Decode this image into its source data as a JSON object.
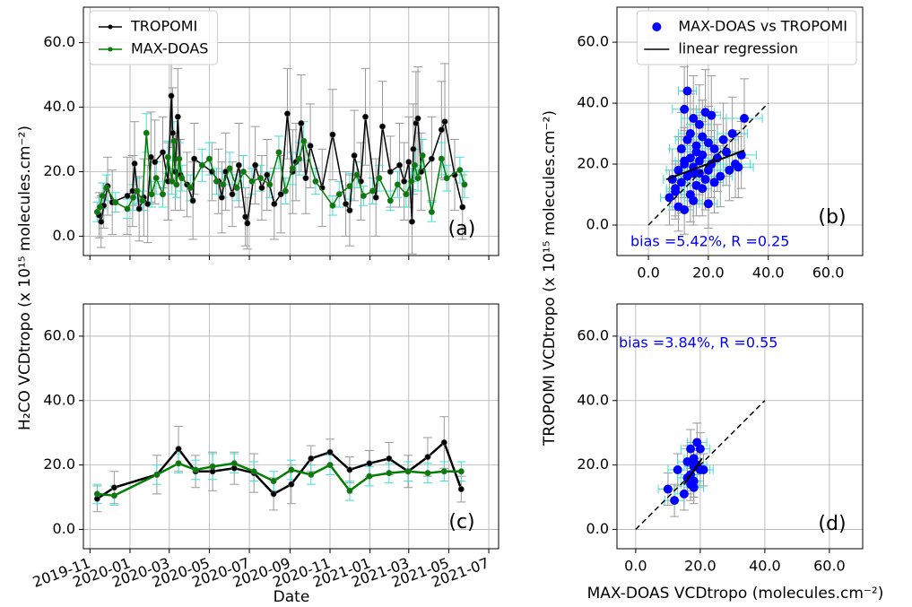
{
  "chart_data": [
    {
      "type": "line",
      "panel_label": "(a)",
      "ylabel": "H₂CO VCDtropo (x 10¹⁵ molecules.cm⁻²)",
      "xlim": [
        "2019-10-22",
        "2021-07-16"
      ],
      "ylim": [
        -6,
        71
      ],
      "xticks": [
        "2019-11",
        "2020-01",
        "2020-03",
        "2020-05",
        "2020-07",
        "2020-09",
        "2020-11",
        "2021-01",
        "2021-03",
        "2021-05",
        "2021-07"
      ],
      "xtick_labels": false,
      "yticks": [
        {
          "value": 0,
          "label": "0.0"
        },
        {
          "value": 20,
          "label": "20.0"
        },
        {
          "value": 40,
          "label": "40.0"
        },
        {
          "value": 60,
          "label": "60.0"
        }
      ],
      "grid": true,
      "legend": "upper left",
      "series": [
        {
          "name": "TROPOMI",
          "color": "#000000",
          "error_color": "#999999",
          "x": [
            "2019-11-15",
            "2019-11-18",
            "2019-11-22",
            "2019-11-28",
            "2019-12-05",
            "2019-12-28",
            "2020-01-05",
            "2020-01-08",
            "2020-01-15",
            "2020-01-22",
            "2020-01-28",
            "2020-02-02",
            "2020-02-08",
            "2020-02-20",
            "2020-02-28",
            "2020-03-04",
            "2020-03-06",
            "2020-03-10",
            "2020-03-14",
            "2020-03-18",
            "2020-03-28",
            "2020-04-06",
            "2020-04-08",
            "2020-05-05",
            "2020-05-15",
            "2020-05-20",
            "2020-05-26",
            "2020-06-05",
            "2020-06-15",
            "2020-06-25",
            "2020-06-28",
            "2020-07-10",
            "2020-07-20",
            "2020-07-28",
            "2020-08-08",
            "2020-08-18",
            "2020-08-28",
            "2020-09-05",
            "2020-09-10",
            "2020-09-18",
            "2020-09-25",
            "2020-10-02",
            "2020-10-20",
            "2020-11-05",
            "2020-11-25",
            "2020-12-01",
            "2020-12-08",
            "2020-12-18",
            "2020-12-25",
            "2021-01-10",
            "2021-01-20",
            "2021-02-01",
            "2021-02-15",
            "2021-02-22",
            "2021-03-01",
            "2021-03-06",
            "2021-03-08",
            "2021-03-12",
            "2021-03-15",
            "2021-03-20",
            "2021-04-05",
            "2021-04-20",
            "2021-04-25",
            "2021-05-10",
            "2021-05-22"
          ],
          "values": [
            6.5,
            4.5,
            9.5,
            15.5,
            10.5,
            12.5,
            14,
            22.5,
            8.5,
            12,
            10,
            24.5,
            23,
            26,
            17,
            43.5,
            32,
            20,
            37,
            19,
            16,
            11,
            24,
            20,
            17,
            12,
            20,
            13,
            22,
            6,
            4,
            22,
            15,
            19,
            10,
            13,
            38,
            20,
            23,
            35,
            18,
            28,
            15,
            31.5,
            10,
            8,
            25,
            17,
            37,
            12,
            34,
            20,
            22,
            17,
            23,
            4.5,
            27,
            35,
            36.5,
            20,
            24,
            33,
            35.5,
            19,
            9
          ],
          "errors": [
            7,
            8,
            7,
            9,
            10,
            12,
            11,
            13,
            10,
            12,
            12,
            14,
            13,
            11,
            12,
            16,
            14,
            12,
            15,
            11,
            10,
            12,
            11,
            9,
            10,
            11,
            12,
            10,
            13,
            9,
            8,
            12,
            10,
            11,
            11,
            12,
            14,
            13,
            12,
            15,
            11,
            13,
            12,
            14,
            10,
            11,
            14,
            12,
            15,
            12,
            14,
            11,
            13,
            12,
            14,
            10,
            14,
            16,
            16,
            12,
            13,
            15,
            18,
            11,
            10
          ]
        },
        {
          "name": "MAX-DOAS",
          "color": "#008000",
          "error_color": "#40e0d0",
          "x": [
            "2019-11-12",
            "2019-11-16",
            "2019-11-20",
            "2019-11-26",
            "2019-12-10",
            "2019-12-28",
            "2020-01-06",
            "2020-01-12",
            "2020-01-20",
            "2020-01-26",
            "2020-02-03",
            "2020-02-10",
            "2020-02-20",
            "2020-02-28",
            "2020-03-05",
            "2020-03-08",
            "2020-03-12",
            "2020-03-16",
            "2020-03-20",
            "2020-04-02",
            "2020-04-20",
            "2020-05-01",
            "2020-05-12",
            "2020-05-22",
            "2020-06-01",
            "2020-06-12",
            "2020-06-22",
            "2020-07-05",
            "2020-07-18",
            "2020-08-01",
            "2020-08-15",
            "2020-08-25",
            "2020-09-05",
            "2020-09-15",
            "2020-09-22",
            "2020-10-10",
            "2020-11-05",
            "2020-11-15",
            "2020-12-01",
            "2020-12-12",
            "2020-12-22",
            "2021-01-05",
            "2021-01-15",
            "2021-02-01",
            "2021-02-12",
            "2021-02-25",
            "2021-03-05",
            "2021-03-10",
            "2021-03-15",
            "2021-03-22",
            "2021-04-05",
            "2021-04-20",
            "2021-04-28",
            "2021-05-18",
            "2021-05-25"
          ],
          "values": [
            7.5,
            9,
            12.5,
            15,
            10.5,
            8.5,
            12,
            14,
            11,
            32,
            13,
            18,
            13,
            24.5,
            17,
            29.5,
            16,
            24,
            18,
            15,
            22,
            24,
            17,
            16,
            21,
            15,
            20,
            17,
            18,
            16,
            26,
            14,
            21,
            24,
            29.5,
            17,
            9.5,
            13,
            15.5,
            19,
            12.5,
            14,
            18,
            11,
            16,
            13,
            17,
            22,
            18,
            25,
            7.5,
            24,
            18,
            20.5,
            16
          ],
          "errors": [
            3,
            3,
            4,
            4,
            3,
            3,
            4,
            4,
            3,
            6,
            4,
            5,
            4,
            5,
            4,
            6,
            4,
            5,
            4,
            4,
            5,
            5,
            4,
            4,
            5,
            4,
            5,
            4,
            4,
            4,
            5,
            4,
            5,
            5,
            6,
            4,
            3,
            4,
            4,
            4,
            3,
            4,
            4,
            3,
            4,
            4,
            4,
            5,
            4,
            5,
            3,
            5,
            4,
            4,
            4
          ]
        }
      ]
    },
    {
      "type": "scatter",
      "panel_label": "(b)",
      "ylabel": "TROPOMI VCDtropo (x 10¹⁵ molecules.cm⁻²)",
      "annotation": "bias =5.42%, R =0.25",
      "annotation_color": "#0000ff",
      "xlim": [
        -10.5,
        71.5
      ],
      "ylim": [
        -10,
        71.5
      ],
      "xticks": [
        {
          "value": 0,
          "label": "0.0"
        },
        {
          "value": 20,
          "label": "20.0"
        },
        {
          "value": 40,
          "label": "40.0"
        },
        {
          "value": 60,
          "label": "60.0"
        }
      ],
      "yticks": [
        {
          "value": 0,
          "label": "0.0"
        },
        {
          "value": 20,
          "label": "20.0"
        },
        {
          "value": 40,
          "label": "40.0"
        },
        {
          "value": 60,
          "label": "60.0"
        }
      ],
      "grid": true,
      "legend": "upper right",
      "series": [
        {
          "name": "MAX-DOAS vs TROPOMI",
          "color": "#0000ff",
          "xerr_color": "#40e0d0",
          "yerr_color": "#999999",
          "x": [
            7,
            8,
            9,
            10,
            10,
            11,
            11,
            12,
            12,
            12,
            13,
            13,
            13,
            14,
            14,
            14,
            15,
            15,
            15,
            16,
            16,
            16,
            17,
            17,
            17,
            18,
            18,
            18,
            19,
            19,
            20,
            20,
            20,
            21,
            21,
            22,
            22,
            23,
            24,
            25,
            26,
            27,
            28,
            29,
            30,
            31,
            32,
            12,
            15,
            9
          ],
          "values": [
            9,
            15,
            12,
            18,
            6,
            14,
            25,
            5,
            20,
            38,
            44,
            16,
            28,
            10,
            22,
            30,
            8,
            19,
            35,
            13,
            24,
            26,
            17,
            21,
            33,
            12,
            23,
            29,
            15,
            37,
            18,
            27,
            7,
            20,
            36,
            14,
            25,
            22,
            16,
            28,
            24,
            18,
            30,
            20,
            19,
            23,
            35,
            21,
            17,
            11
          ],
          "xerr": [
            3,
            3,
            3,
            4,
            3,
            3,
            4,
            3,
            3,
            4,
            3,
            3,
            4,
            3,
            3,
            4,
            3,
            3,
            4,
            3,
            3,
            4,
            3,
            3,
            4,
            3,
            3,
            4,
            3,
            3,
            4,
            3,
            3,
            4,
            3,
            3,
            4,
            4,
            4,
            5,
            4,
            4,
            5,
            5,
            5,
            5,
            6,
            3,
            3,
            3
          ],
          "yerr": [
            9,
            10,
            9,
            11,
            8,
            10,
            12,
            8,
            11,
            14,
            15,
            10,
            12,
            9,
            11,
            13,
            8,
            11,
            14,
            10,
            12,
            12,
            10,
            11,
            13,
            9,
            11,
            12,
            10,
            14,
            11,
            12,
            8,
            11,
            13,
            10,
            12,
            11,
            10,
            12,
            11,
            10,
            12,
            11,
            10,
            11,
            13,
            11,
            10,
            9
          ]
        },
        {
          "name": "linear regression",
          "color": "#000000",
          "role": "regression",
          "x": [
            6,
            32
          ],
          "values": [
            15,
            24.5
          ]
        },
        {
          "color": "#000000",
          "role": "reference",
          "x": [
            0,
            40
          ],
          "values": [
            0,
            40
          ]
        }
      ]
    },
    {
      "type": "line",
      "panel_label": "(c)",
      "xlabel": "Date",
      "xlim": [
        "2019-10-22",
        "2021-07-16"
      ],
      "ylim": [
        -6,
        70
      ],
      "xticks": [
        "2019-11",
        "2020-01",
        "2020-03",
        "2020-05",
        "2020-07",
        "2020-09",
        "2020-11",
        "2021-01",
        "2021-03",
        "2021-05",
        "2021-07"
      ],
      "xtick_labels": true,
      "yticks": [
        {
          "value": 0,
          "label": "0.0"
        },
        {
          "value": 20,
          "label": "20.0"
        },
        {
          "value": 40,
          "label": "40.0"
        },
        {
          "value": 60,
          "label": "60.0"
        }
      ],
      "grid": true,
      "series": [
        {
          "color": "#000000",
          "error_color": "#999999",
          "x": [
            "2019-11-12",
            "2019-12-08",
            "2020-02-11",
            "2020-03-15",
            "2020-04-10",
            "2020-05-06",
            "2020-06-08",
            "2020-07-08",
            "2020-08-07",
            "2020-09-03",
            "2020-10-03",
            "2020-11-01",
            "2020-12-01",
            "2020-12-31",
            "2021-01-30",
            "2021-02-28",
            "2021-03-30",
            "2021-04-24",
            "2021-05-20"
          ],
          "values": [
            9.5,
            13,
            17,
            25,
            18,
            18,
            19,
            17.5,
            11,
            14,
            22,
            24,
            18.5,
            20.5,
            22,
            18,
            22.5,
            27,
            12.5
          ],
          "errors": [
            4,
            5,
            6,
            7,
            5,
            6,
            5,
            6,
            5,
            6,
            4,
            4,
            4,
            4,
            5,
            5,
            6,
            8,
            4
          ]
        },
        {
          "color": "#008000",
          "error_color": "#40e0d0",
          "x": [
            "2019-11-12",
            "2019-12-08",
            "2020-02-11",
            "2020-03-15",
            "2020-04-10",
            "2020-05-06",
            "2020-06-08",
            "2020-07-08",
            "2020-08-07",
            "2020-09-03",
            "2020-10-03",
            "2020-11-01",
            "2020-12-01",
            "2020-12-31",
            "2021-01-30",
            "2021-02-28",
            "2021-03-30",
            "2021-04-24",
            "2021-05-20"
          ],
          "values": [
            11,
            10.5,
            17,
            20.5,
            18.5,
            19.5,
            20.5,
            18,
            15,
            18.5,
            17,
            20,
            12,
            16.5,
            17.5,
            18,
            17.5,
            18,
            18
          ],
          "errors": [
            3,
            3,
            3,
            3,
            3,
            4,
            3,
            3,
            3,
            3,
            3,
            3,
            3,
            3,
            3,
            3,
            3,
            3,
            3
          ]
        }
      ]
    },
    {
      "type": "scatter",
      "panel_label": "(d)",
      "xlabel": "MAX-DOAS VCDtropo (molecules.cm⁻²)",
      "annotation": "bias =3.84%, R =0.55",
      "annotation_color": "#0000ff",
      "xlim": [
        -5.8,
        70.3
      ],
      "ylim": [
        -6,
        70
      ],
      "xticks": [
        {
          "value": 0,
          "label": "0.0"
        },
        {
          "value": 20,
          "label": "20.0"
        },
        {
          "value": 40,
          "label": "40.0"
        },
        {
          "value": 60,
          "label": "60.0"
        }
      ],
      "yticks": [
        {
          "value": 0,
          "label": "0.0"
        },
        {
          "value": 20,
          "label": "20.0"
        },
        {
          "value": 40,
          "label": "40.0"
        },
        {
          "value": 60,
          "label": "60.0"
        }
      ],
      "grid": true,
      "series": [
        {
          "color": "#0000ff",
          "xerr_color": "#40e0d0",
          "yerr_color": "#999999",
          "x": [
            10,
            12,
            13,
            15,
            16,
            17,
            17,
            18,
            18,
            18,
            19,
            19,
            20,
            20,
            21,
            18,
            17,
            16
          ],
          "values": [
            12.5,
            9,
            18.5,
            11,
            21,
            17,
            25,
            15,
            22,
            13,
            20,
            27,
            18.5,
            25,
            18.5,
            19.5,
            14,
            16
          ],
          "xerr": [
            3,
            3,
            3,
            3,
            3,
            3,
            3,
            3,
            3,
            3,
            3,
            3,
            3,
            3,
            3,
            3,
            3,
            3
          ],
          "yerr": [
            5,
            5,
            5,
            5,
            5,
            5,
            6,
            5,
            5,
            5,
            5,
            6,
            5,
            5,
            5,
            5,
            5,
            5
          ]
        },
        {
          "color": "#000000",
          "role": "regression",
          "x": [
            15,
            20.5
          ],
          "values": [
            14,
            22
          ]
        },
        {
          "color": "#000000",
          "role": "reference",
          "x": [
            0,
            40
          ],
          "values": [
            0,
            40
          ]
        }
      ]
    }
  ]
}
